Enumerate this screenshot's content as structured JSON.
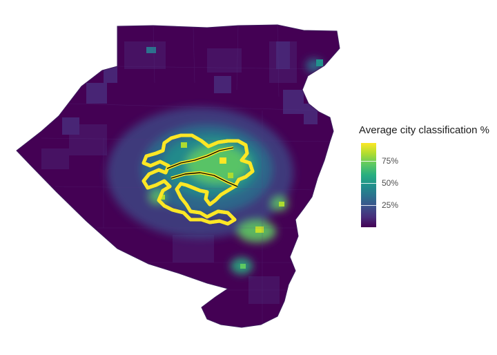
{
  "legend": {
    "title": "Average city classification %",
    "min": 0,
    "max": 95,
    "ticks": [
      {
        "value": 25,
        "label": "25%"
      },
      {
        "value": 50,
        "label": "50%"
      },
      {
        "value": 75,
        "label": "75%"
      }
    ]
  },
  "colors": {
    "background": "#ffffff",
    "low": "#440154",
    "mid": "#21918c",
    "high": "#fde725",
    "city_outline_outer": "#fde725",
    "city_outline_inner": "#000000"
  }
}
